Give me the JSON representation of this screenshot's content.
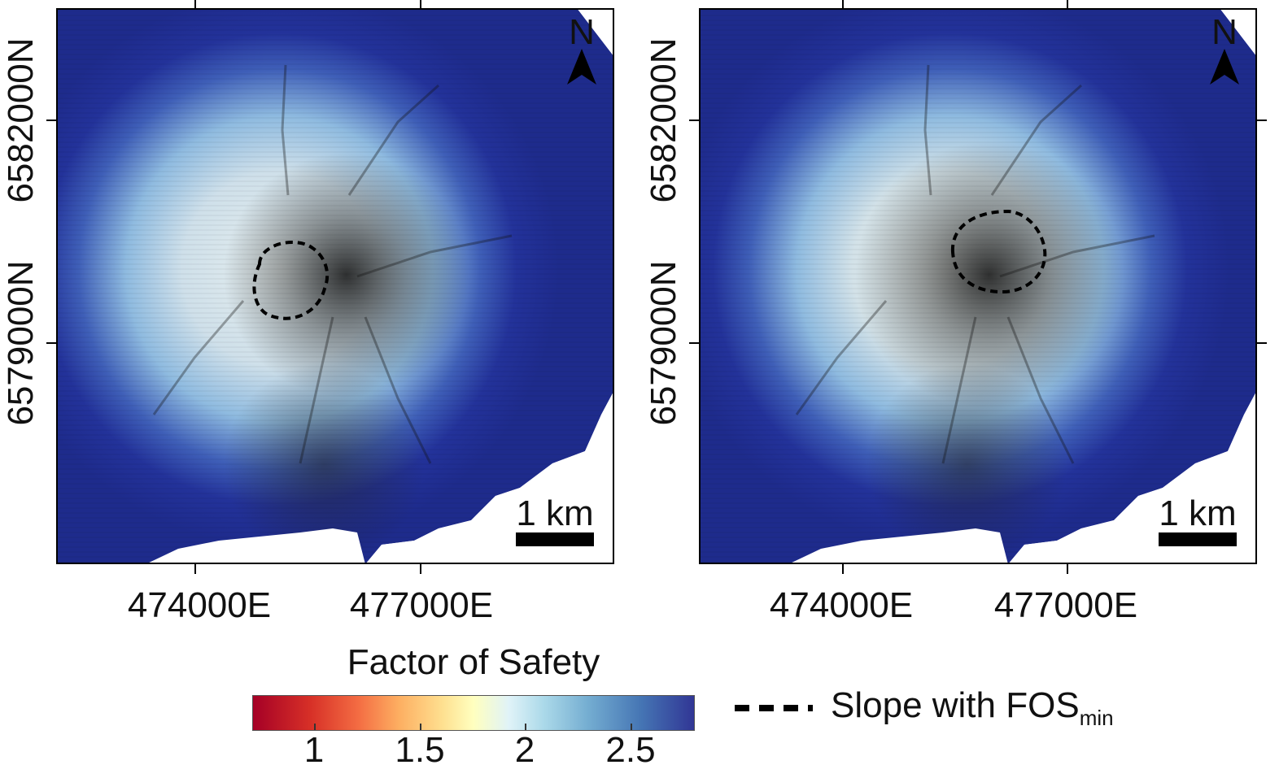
{
  "panels": [
    {
      "id": "left",
      "north_label": "N",
      "scale_label": "1 km",
      "x_ticks": [
        "474000E",
        "477000E"
      ],
      "y_ticks": [
        "6582000N",
        "6579000N"
      ],
      "fos_min_slope": "small outline west of summit"
    },
    {
      "id": "right",
      "north_label": "N",
      "scale_label": "1 km",
      "x_ticks": [
        "474000E",
        "477000E"
      ],
      "y_ticks": [
        "6582000N",
        "6579000N"
      ],
      "fos_min_slope": "larger outline at summit"
    }
  ],
  "legend": {
    "title": "Factor of Safety",
    "ticks": [
      "1",
      "1.5",
      "2",
      "2.5"
    ],
    "colormap": [
      "#a50026",
      "#d73027",
      "#f46d43",
      "#fdae61",
      "#fee090",
      "#ffffbf",
      "#e0f3f8",
      "#abd9e9",
      "#74add1",
      "#4575b4",
      "#313695"
    ],
    "slope_label": "Slope with FOS",
    "slope_subscript": "min",
    "slope_line_style": "dashed black"
  },
  "colors": {
    "background_sea": "#1e2c8e",
    "land_high": "#d7e7ec",
    "no_data": "#ffffff",
    "outline": "#000000"
  },
  "icons": [
    "north-arrow-icon",
    "dashed-line-icon"
  ]
}
